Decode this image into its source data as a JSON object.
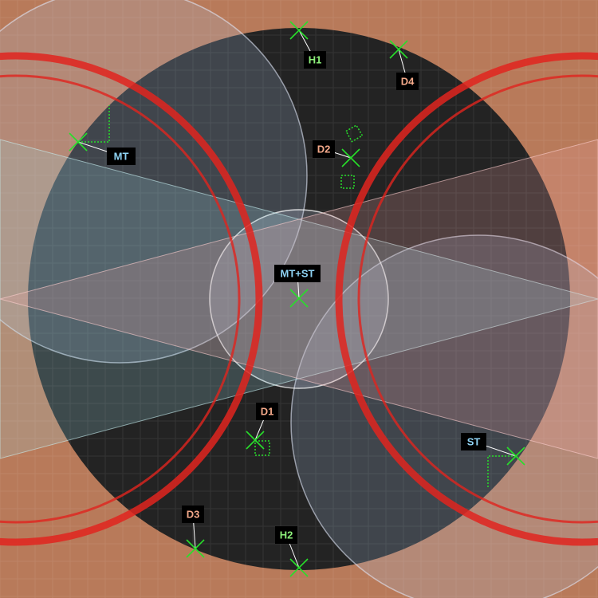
{
  "map": {
    "title": "",
    "background_color": "#b87a5a",
    "floor_color": "#232323",
    "danger_color": "#e0241e",
    "marker_color": "#27e02a",
    "tank_label_color": "#8fd3f4",
    "healer_label_color": "#8df07a",
    "dps_label_color": "#f4a98a"
  },
  "markers": [
    {
      "id": "H1",
      "label": "H1",
      "role": "healer",
      "icon": "x-mark-icon"
    },
    {
      "id": "D4",
      "label": "D4",
      "role": "dps",
      "icon": "x-mark-icon"
    },
    {
      "id": "MT",
      "label": "MT",
      "role": "tank",
      "icon": "x-mark-icon"
    },
    {
      "id": "D2",
      "label": "D2",
      "role": "dps",
      "icon": "x-mark-icon"
    },
    {
      "id": "MTST",
      "label": "MT+ST",
      "role": "tank",
      "icon": "x-mark-icon"
    },
    {
      "id": "D1",
      "label": "D1",
      "role": "dps",
      "icon": "x-mark-icon"
    },
    {
      "id": "ST",
      "label": "ST",
      "role": "tank",
      "icon": "x-mark-icon"
    },
    {
      "id": "D3",
      "label": "D3",
      "role": "dps",
      "icon": "x-mark-icon"
    },
    {
      "id": "H2",
      "label": "H2",
      "role": "healer",
      "icon": "x-mark-icon"
    }
  ]
}
